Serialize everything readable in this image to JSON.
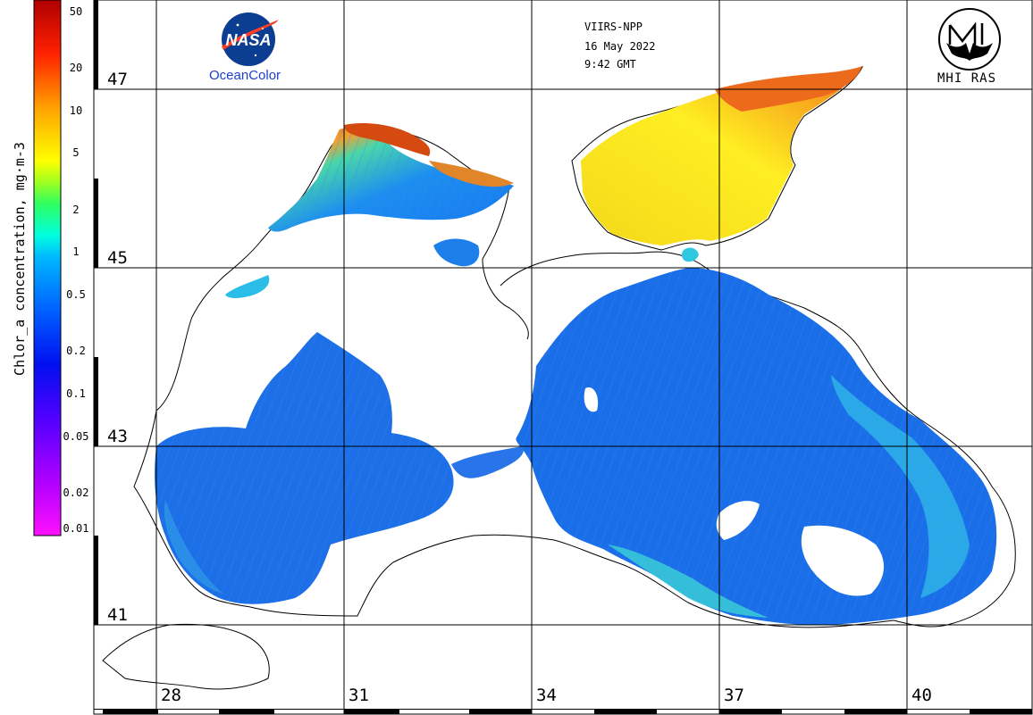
{
  "header": {
    "sensor": "VIIRS-NPP",
    "date": "16 May 2022",
    "time": "9:42 GMT"
  },
  "logos": {
    "left_text": "OceanColor",
    "left_logo_lettering": "NASA",
    "right_text": "MHI RAS"
  },
  "colorbar": {
    "title": "Chlor_a concentration, mg·m-3",
    "ticks": [
      "50",
      "20",
      "10",
      "5",
      "2",
      "1",
      "0.5",
      "0.2",
      "0.1",
      "0.05",
      "0.02",
      "0.01"
    ],
    "scale": "log",
    "range": [
      0.01,
      60
    ],
    "colors": [
      "#ff00ff",
      "#8000ff",
      "#0000ff",
      "#0080ff",
      "#00ffff",
      "#00ff80",
      "#80ff00",
      "#ffff00",
      "#ff8000",
      "#ff0000",
      "#a00000"
    ]
  },
  "grid": {
    "latitudes": [
      "47",
      "45",
      "43",
      "41"
    ],
    "longitudes": [
      "28",
      "31",
      "34",
      "37",
      "40"
    ]
  },
  "colors": {
    "sea_blue": "#1a6fe8",
    "coastal_cyan": "#22c4e8",
    "azov_yellow": "#f2e11c",
    "high_orange": "#ef6a18"
  }
}
